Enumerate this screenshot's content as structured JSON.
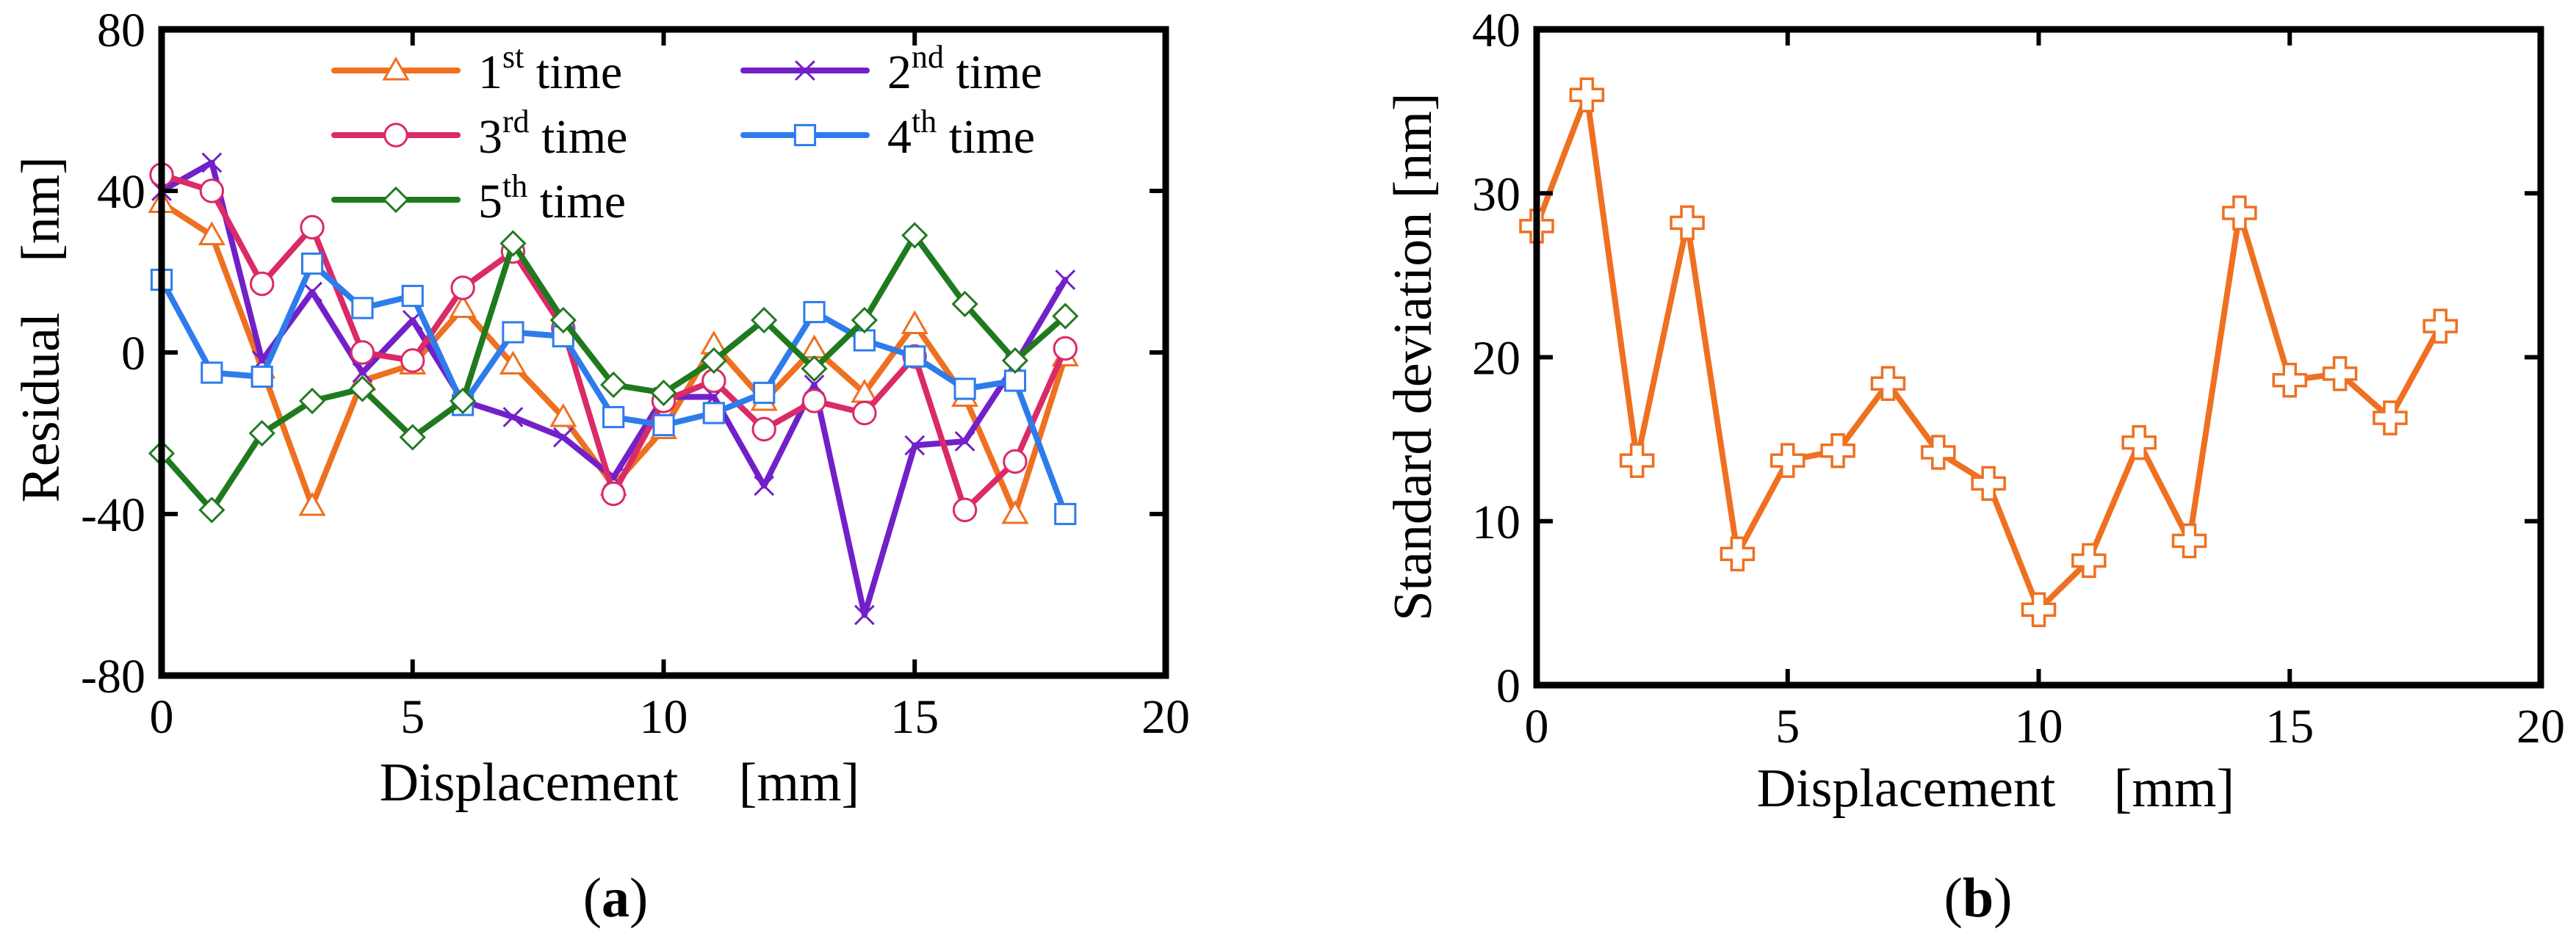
{
  "colors": {
    "t1": "#EE7020",
    "t2": "#7220C8",
    "t3": "#DA2A67",
    "t4": "#2E7CEB",
    "t5": "#1F7A1F",
    "b": "#EE7020",
    "axis": "#000000"
  },
  "chart_data": [
    {
      "type": "line",
      "panel_label": "a",
      "xlabel": "Displacement",
      "xunit": "[mm]",
      "ylabel": "Residual",
      "yunit": "[nm]",
      "xlim": [
        0,
        20
      ],
      "ylim": [
        -80,
        80
      ],
      "xticks": [
        0,
        5,
        10,
        15,
        20
      ],
      "yticks": [
        -80,
        -40,
        0,
        40,
        80
      ],
      "legend_position": "top",
      "x": [
        0,
        1,
        2,
        3,
        4,
        5,
        6,
        7,
        8,
        9,
        10,
        11,
        12,
        13,
        14,
        15,
        16,
        17,
        18
      ],
      "series": [
        {
          "id": "t1",
          "name": "1",
          "sup": "st",
          "rest": " time",
          "marker": "triangle",
          "values": [
            37,
            29,
            -4,
            -38,
            -7,
            -3,
            11,
            -3,
            -16,
            -33,
            -19,
            2,
            -12,
            1,
            -10,
            7,
            -11,
            -40,
            -1
          ]
        },
        {
          "id": "t2",
          "name": "2",
          "sup": "nd",
          "rest": " time",
          "marker": "x",
          "values": [
            40,
            47,
            -2,
            15,
            -5,
            8,
            -12,
            -16,
            -21,
            -31,
            -11,
            -11,
            -33,
            -8,
            -65,
            -23,
            -22,
            -3,
            18
          ]
        },
        {
          "id": "t3",
          "name": "3",
          "sup": "rd",
          "rest": " time",
          "marker": "circle",
          "values": [
            44,
            40,
            17,
            31,
            0,
            -2,
            16,
            25,
            6,
            -35,
            -12,
            -7,
            -19,
            -12,
            -15,
            -1,
            -39,
            -27,
            1
          ]
        },
        {
          "id": "t4",
          "name": "4",
          "sup": "th",
          "rest": " time",
          "marker": "square",
          "values": [
            18,
            -5,
            -6,
            22,
            11,
            14,
            -13,
            5,
            4,
            -16,
            -18,
            -15,
            -10,
            10,
            3,
            -1,
            -9,
            -7,
            -40
          ]
        },
        {
          "id": "t5",
          "name": "5",
          "sup": "th",
          "rest": " time",
          "marker": "diamond",
          "values": [
            -25,
            -39,
            -20,
            -12,
            -9,
            -21,
            -12,
            27,
            8,
            -8,
            -10,
            -2,
            8,
            -4,
            8,
            29,
            12,
            -2,
            9
          ]
        }
      ]
    },
    {
      "type": "line",
      "panel_label": "b",
      "xlabel": "Displacement",
      "xunit": "[mm]",
      "ylabel": "Standard deviation [nm]",
      "xlim": [
        0,
        20
      ],
      "ylim": [
        0,
        40
      ],
      "xticks": [
        0,
        5,
        10,
        15,
        20
      ],
      "yticks": [
        0,
        10,
        20,
        30,
        40
      ],
      "x": [
        0,
        1,
        2,
        3,
        4,
        5,
        6,
        7,
        8,
        9,
        10,
        11,
        12,
        13,
        14,
        15,
        16,
        17,
        18
      ],
      "series": [
        {
          "id": "b",
          "name": "Standard deviation",
          "marker": "cross",
          "values": [
            28,
            36,
            13.7,
            28.2,
            8,
            13.7,
            14.3,
            18.4,
            14.2,
            12.3,
            4.6,
            7.6,
            14.8,
            8.8,
            28.8,
            18.6,
            19,
            16.3,
            21.9
          ]
        }
      ]
    }
  ]
}
